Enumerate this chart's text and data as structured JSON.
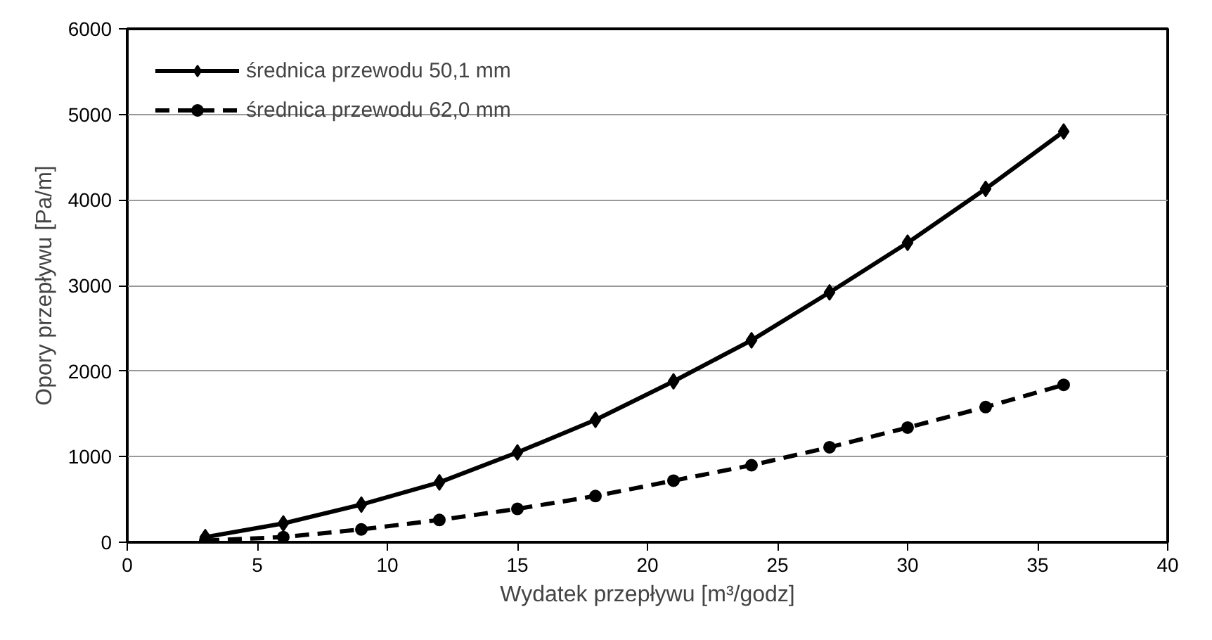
{
  "chart_data": {
    "type": "line",
    "xlabel": "Wydatek przepływu [m³/godz]",
    "ylabel": "Opory przepływu [Pa/m]",
    "x": [
      3,
      6,
      9,
      12,
      15,
      18,
      21,
      24,
      27,
      30,
      33,
      36
    ],
    "series": [
      {
        "name": "średnica przewodu 50,1 mm",
        "color": "#000000",
        "marker": "diamond",
        "line_style": "solid",
        "values": [
          60,
          220,
          440,
          700,
          1050,
          1430,
          1880,
          2360,
          2920,
          3500,
          4130,
          4800
        ]
      },
      {
        "name": "średnica przewodu 62,0 mm",
        "color": "#000000",
        "marker": "circle",
        "line_style": "dashed",
        "values": [
          20,
          60,
          150,
          260,
          390,
          540,
          720,
          900,
          1110,
          1340,
          1580,
          1840
        ]
      }
    ],
    "xlim": [
      0,
      40
    ],
    "xticks": [
      0,
      5,
      10,
      15,
      20,
      25,
      30,
      35,
      40
    ],
    "ylim": [
      0,
      6000
    ],
    "yticks": [
      0,
      1000,
      2000,
      3000,
      4000,
      5000,
      6000
    ],
    "grid": "y",
    "legend": "top left"
  }
}
